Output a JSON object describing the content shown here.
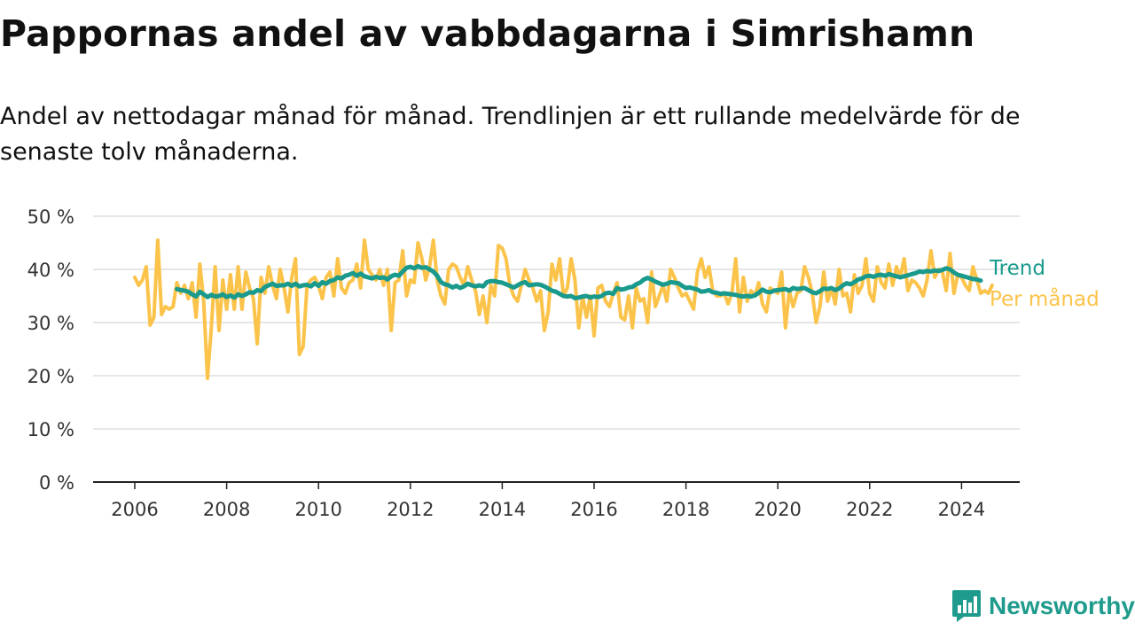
{
  "title": "Pappornas andel av vabbdagarna i Simrishamn",
  "subtitle": "Andel av nettodagar månad för månad. Trendlinjen är ett rullande medelvärde för de senaste tolv månaderna.",
  "brand": {
    "name": "Newsworthy",
    "logo_icon": "newsworthy-logo-icon"
  },
  "colors": {
    "monthly": "#fbc34a",
    "trend": "#1a9a8c",
    "grid": "#dddddd",
    "axis": "#222222",
    "text": "#333333"
  },
  "chart_data": {
    "type": "line",
    "title": "Pappornas andel av vabbdagarna i Simrishamn",
    "xlabel": "",
    "ylabel": "",
    "x_ticks": [
      "2006",
      "2008",
      "2010",
      "2012",
      "2014",
      "2016",
      "2018",
      "2020",
      "2022",
      "2024"
    ],
    "y_ticks": [
      "0 %",
      "10 %",
      "20 %",
      "30 %",
      "40 %",
      "50 %"
    ],
    "ylim": [
      0,
      50
    ],
    "xlim": [
      "2005-01",
      "2025-01"
    ],
    "grid": "horizontal",
    "legend": "right end of lines",
    "series": [
      {
        "name": "Per månad",
        "start": "2006-01",
        "frequency": "monthly",
        "values": [
          38.5,
          37.0,
          38.0,
          40.5,
          29.5,
          31.0,
          45.5,
          31.5,
          33.0,
          32.5,
          33.0,
          37.5,
          35.5,
          37.0,
          34.5,
          37.5,
          31.0,
          41.0,
          34.0,
          19.5,
          29.0,
          40.5,
          28.5,
          38.0,
          32.5,
          39.0,
          32.5,
          40.5,
          32.5,
          39.5,
          36.5,
          34.5,
          26.0,
          38.5,
          35.5,
          40.5,
          37.0,
          34.5,
          40.0,
          36.5,
          32.0,
          38.5,
          42.0,
          24.0,
          25.5,
          37.0,
          38.0,
          38.5,
          37.0,
          34.5,
          38.5,
          39.5,
          35.0,
          42.0,
          36.5,
          35.5,
          37.5,
          38.0,
          41.0,
          36.5,
          45.5,
          40.0,
          39.0,
          38.0,
          40.0,
          37.0,
          40.0,
          28.5,
          37.5,
          38.0,
          43.5,
          35.0,
          38.0,
          37.5,
          45.0,
          42.0,
          38.0,
          40.5,
          45.5,
          38.0,
          35.0,
          33.5,
          40.0,
          41.0,
          40.5,
          38.5,
          37.0,
          40.5,
          38.0,
          36.0,
          31.5,
          35.0,
          30.0,
          37.0,
          35.0,
          44.5,
          44.0,
          42.0,
          37.0,
          35.0,
          34.0,
          37.0,
          40.0,
          38.0,
          36.5,
          34.0,
          36.0,
          28.5,
          32.0,
          41.0,
          38.0,
          42.0,
          35.0,
          36.5,
          42.0,
          38.0,
          29.0,
          35.0,
          31.0,
          35.0,
          27.5,
          36.5,
          37.0,
          34.0,
          33.0,
          35.5,
          37.5,
          31.0,
          30.5,
          35.0,
          29.0,
          36.5,
          34.0,
          34.5,
          30.0,
          39.5,
          33.0,
          35.0,
          37.0,
          34.0,
          40.0,
          38.5,
          36.5,
          35.0,
          35.5,
          34.0,
          32.5,
          39.5,
          42.0,
          38.5,
          40.5,
          36.0,
          35.0,
          35.0,
          35.5,
          33.5,
          35.5,
          42.0,
          32.0,
          38.5,
          34.0,
          36.0,
          35.0,
          37.5,
          33.5,
          32.0,
          36.5,
          36.0,
          35.5,
          39.5,
          29.0,
          36.0,
          33.0,
          35.5,
          36.0,
          40.5,
          38.5,
          35.5,
          30.0,
          33.0,
          39.5,
          34.0,
          36.5,
          33.5,
          40.0,
          35.0,
          35.5,
          32.0,
          39.0,
          35.5,
          37.0,
          42.0,
          35.5,
          34.0,
          40.5,
          37.5,
          36.5,
          41.0,
          37.0,
          40.5,
          38.5,
          42.0,
          36.0,
          38.0,
          37.5,
          36.5,
          35.0,
          38.0,
          43.5,
          38.5,
          40.0,
          39.5,
          36.0,
          43.0,
          35.5,
          39.0,
          38.5,
          37.0,
          36.0,
          40.5,
          38.0,
          35.5,
          36.0,
          35.5,
          37.0
        ]
      },
      {
        "name": "Trend",
        "start": "2006-12",
        "frequency": "monthly",
        "values": [
          36.3,
          36.1,
          36.0,
          35.8,
          35.3,
          34.9,
          35.8,
          35.3,
          34.8,
          35.2,
          34.9,
          35.0,
          35.3,
          34.8,
          35.1,
          34.7,
          35.3,
          35.0,
          35.3,
          35.7,
          35.6,
          36.1,
          35.9,
          36.7,
          37.0,
          37.3,
          36.9,
          37.0,
          37.0,
          37.3,
          36.9,
          37.3,
          36.8,
          37.0,
          37.1,
          36.8,
          37.4,
          36.9,
          37.6,
          37.3,
          37.8,
          38.0,
          38.5,
          38.3,
          38.8,
          39.0,
          39.3,
          38.8,
          39.2,
          38.7,
          38.5,
          38.3,
          38.6,
          38.4,
          38.5,
          38.1,
          38.7,
          39.0,
          38.8,
          39.6,
          40.3,
          40.5,
          40.2,
          40.6,
          40.3,
          40.4,
          40.0,
          39.6,
          38.8,
          37.6,
          37.2,
          37.0,
          36.6,
          36.9,
          36.5,
          36.8,
          37.3,
          37.0,
          36.8,
          37.0,
          36.8,
          37.6,
          37.8,
          37.8,
          37.6,
          37.5,
          37.2,
          36.9,
          36.6,
          37.0,
          37.4,
          37.6,
          37.0,
          37.1,
          37.2,
          37.1,
          36.8,
          36.4,
          36.0,
          35.8,
          35.4,
          35.0,
          34.9,
          35.0,
          34.6,
          34.7,
          34.9,
          35.0,
          34.7,
          34.9,
          34.8,
          35.0,
          35.5,
          35.6,
          35.4,
          36.5,
          36.2,
          36.3,
          36.6,
          36.7,
          37.2,
          37.5,
          38.1,
          38.4,
          38.1,
          37.7,
          37.4,
          37.1,
          37.3,
          37.6,
          37.5,
          37.4,
          36.9,
          36.5,
          36.6,
          36.4,
          36.2,
          35.8,
          35.9,
          36.1,
          35.7,
          35.6,
          35.4,
          35.5,
          35.4,
          35.3,
          35.2,
          35.0,
          34.9,
          35.0,
          34.9,
          35.1,
          35.6,
          36.2,
          35.8,
          35.7,
          36.0,
          36.1,
          36.2,
          36.3,
          36.0,
          36.5,
          36.3,
          36.4,
          36.5,
          36.1,
          35.7,
          35.5,
          35.9,
          36.4,
          36.3,
          36.5,
          36.1,
          36.4,
          37.0,
          37.4,
          37.2,
          37.6,
          38.1,
          38.3,
          38.7,
          38.8,
          38.6,
          38.9,
          39.0,
          38.8,
          39.1,
          38.9,
          38.7,
          38.5,
          38.7,
          38.9,
          39.1,
          39.3,
          39.6,
          39.5,
          39.7,
          39.6,
          39.8,
          39.7,
          39.9,
          40.2,
          40.0,
          39.4,
          39.0,
          38.8,
          38.6,
          38.4,
          38.2,
          38.1,
          37.9
        ]
      }
    ]
  }
}
